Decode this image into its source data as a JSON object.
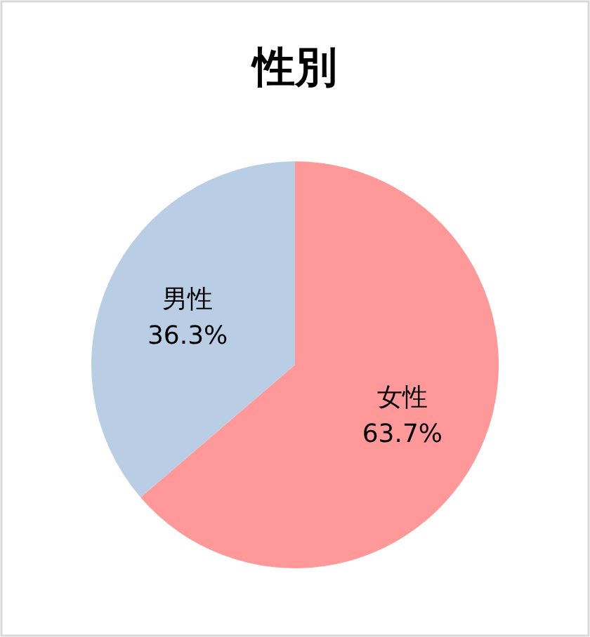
{
  "chart_data": {
    "type": "pie",
    "title": "性別",
    "categories": [
      "女性",
      "男性"
    ],
    "values": [
      63.7,
      36.3
    ],
    "colors": [
      "#ff9999",
      "#b9cde5"
    ],
    "value_labels": [
      "63.7%",
      "36.3%"
    ]
  }
}
